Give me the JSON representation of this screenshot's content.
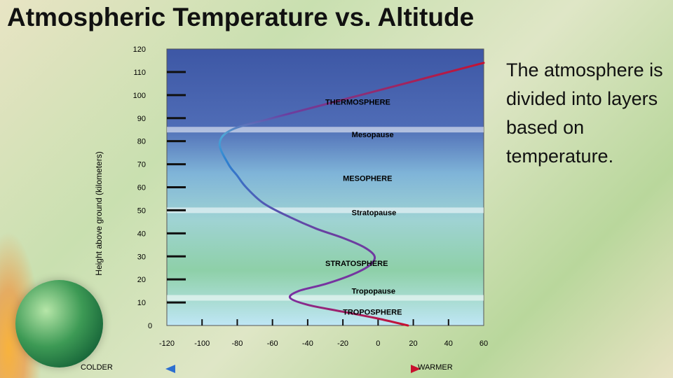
{
  "slide": {
    "title": "Atmospheric Temperature vs. Altitude",
    "side_text": "The atmosphere is divided into layers based on temperature."
  },
  "chart_data": {
    "type": "line",
    "title": "",
    "ylabel": "Height above ground (kilometers)",
    "xlabel": "",
    "xlim": [
      -120,
      60
    ],
    "ylim": [
      0,
      120
    ],
    "x_ticks": [
      -120,
      -100,
      -80,
      -60,
      -40,
      -20,
      0,
      20,
      40,
      60
    ],
    "y_ticks": [
      0,
      10,
      20,
      30,
      40,
      50,
      60,
      70,
      80,
      90,
      100,
      110,
      120
    ],
    "grid": false,
    "series": [
      {
        "x": [
          17,
          0,
          -20,
          -40,
          -50,
          -45,
          -30,
          -15,
          -5,
          -2,
          -8,
          -20,
          -35,
          -50,
          -65,
          -75,
          -80,
          -85,
          -90,
          -83,
          -60,
          -30,
          0,
          30,
          60
        ],
        "y": [
          0,
          3,
          6,
          9,
          12,
          15,
          18,
          22,
          26,
          30,
          34,
          38,
          42,
          47,
          53,
          60,
          65,
          70,
          79,
          85,
          90,
          96,
          102,
          108,
          114
        ],
        "colors": [
          "#c8102e",
          "#6a3fa0",
          "#2d7fd0"
        ]
      }
    ],
    "annotations": [
      {
        "label": "THERMOSPHERE",
        "x": -30,
        "y": 97
      },
      {
        "label": "Mesopause",
        "x": -15,
        "y": 83
      },
      {
        "label": "MESOPHERE",
        "x": -20,
        "y": 64
      },
      {
        "label": "Stratopause",
        "x": -15,
        "y": 49
      },
      {
        "label": "STRATOSPHERE",
        "x": -30,
        "y": 27
      },
      {
        "label": "Tropopause",
        "x": -15,
        "y": 15
      },
      {
        "label": "TROPOSPHERE",
        "x": -20,
        "y": 6
      }
    ],
    "boundary_altitudes": [
      12,
      50,
      85
    ],
    "scale": {
      "left_label": "COLDER",
      "right_label": "WARMER"
    }
  }
}
